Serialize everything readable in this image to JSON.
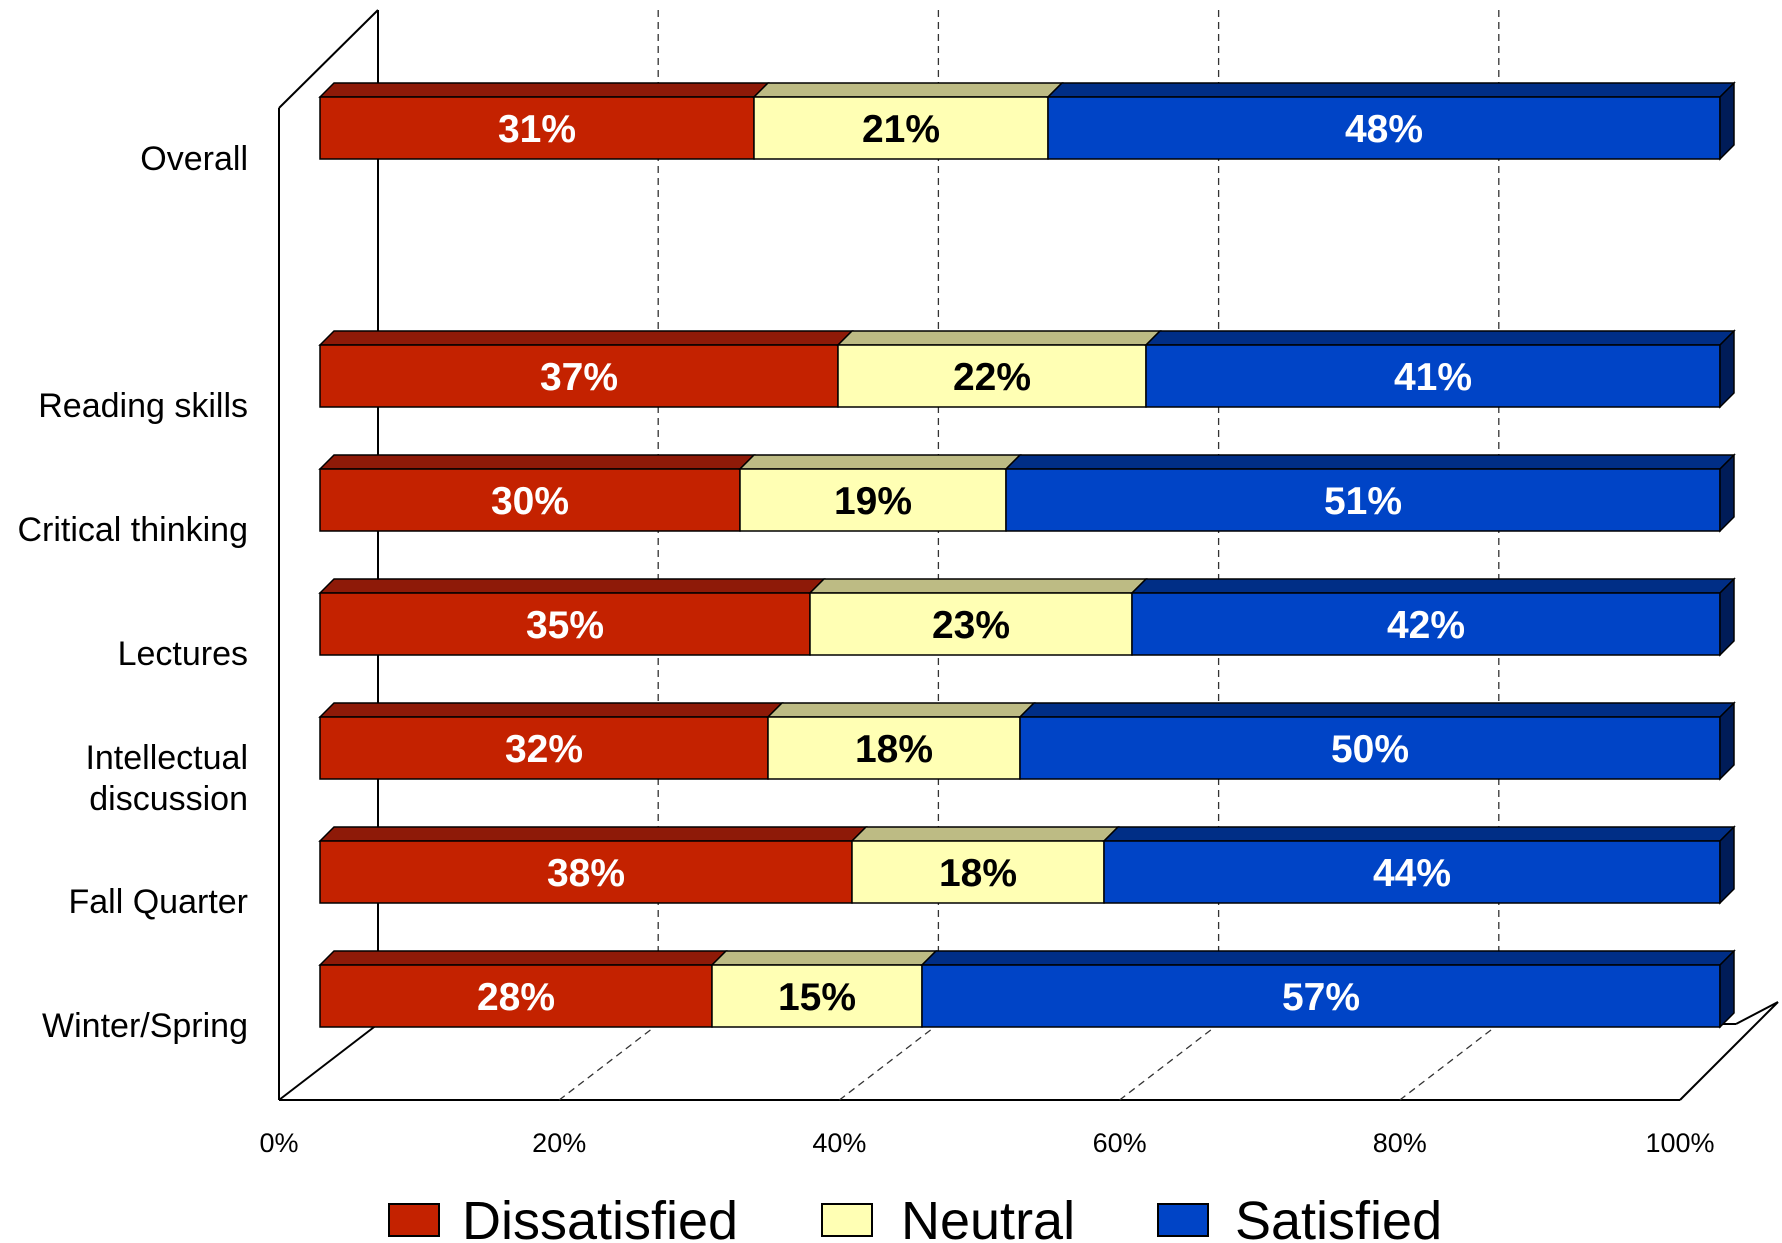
{
  "chart_data": {
    "type": "bar",
    "orientation": "horizontal",
    "stacked": true,
    "percent_stacked": true,
    "three_d": true,
    "categories": [
      "Overall",
      "Reading skills",
      "Critical thinking",
      "Lectures",
      "Intellectual discussion",
      "Fall Quarter",
      "Winter/Spring"
    ],
    "category_label_lines": [
      [
        "Overall"
      ],
      [
        "Reading skills"
      ],
      [
        "Critical thinking"
      ],
      [
        "Lectures"
      ],
      [
        "Intellectual",
        "discussion"
      ],
      [
        "Fall Quarter"
      ],
      [
        "Winter/Spring"
      ]
    ],
    "series": [
      {
        "name": "Dissatisfied",
        "values": [
          31,
          37,
          30,
          35,
          32,
          38,
          28
        ],
        "labels": [
          "31%",
          "37%",
          "30%",
          "35%",
          "32%",
          "38%",
          "28%"
        ]
      },
      {
        "name": "Neutral",
        "values": [
          21,
          22,
          19,
          23,
          18,
          18,
          15
        ],
        "labels": [
          "21%",
          "22%",
          "19%",
          "23%",
          "18%",
          "18%",
          "15%"
        ]
      },
      {
        "name": "Satisfied",
        "values": [
          48,
          41,
          51,
          42,
          50,
          44,
          57
        ],
        "labels": [
          "48%",
          "41%",
          "51%",
          "42%",
          "50%",
          "44%",
          "57%"
        ]
      }
    ],
    "colors": {
      "Dissatisfied": {
        "face": "#C42200",
        "top": "#8E1A08",
        "text": "#FFFFFF"
      },
      "Neutral": {
        "face": "#FFFFB4",
        "top": "#BDBB84",
        "text": "#000000"
      },
      "Satisfied": {
        "face": "#0044C6",
        "top": "#002E86",
        "side": "#001C58",
        "text": "#FFFFFF"
      }
    },
    "xlim": [
      0,
      100
    ],
    "x_ticks": [
      0,
      20,
      40,
      60,
      80,
      100
    ],
    "x_tick_labels": [
      "0%",
      "20%",
      "40%",
      "60%",
      "80%",
      "100%"
    ],
    "title": "",
    "xlabel": "",
    "ylabel": "",
    "grid": true,
    "legend": {
      "position": "bottom",
      "items": [
        "Dissatisfied",
        "Neutral",
        "Satisfied"
      ]
    }
  }
}
